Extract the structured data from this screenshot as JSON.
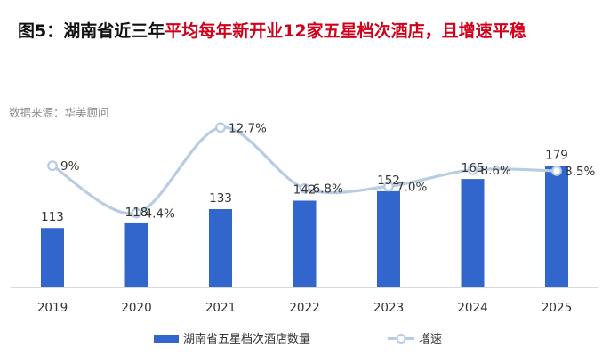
{
  "title": {
    "prefix": "图5：湖南省近三年",
    "highlight": "平均每年新开业12家五星档次酒店，且增速平稳"
  },
  "source": "数据来源：华美顾问",
  "colors": {
    "bar": "#3366cc",
    "line": "#b8cce4",
    "title_red": "#d0021b"
  },
  "chart_data": {
    "type": "bar",
    "categories": [
      "2019",
      "2020",
      "2021",
      "2022",
      "2023",
      "2024",
      "2025"
    ],
    "series": [
      {
        "name": "湖南省五星档次酒店数量",
        "type": "bar",
        "values": [
          113,
          118,
          133,
          142,
          152,
          165,
          179
        ],
        "labels": [
          "113",
          "118",
          "133",
          "142",
          "152",
          "165",
          "179"
        ]
      },
      {
        "name": "增速",
        "type": "line",
        "values": [
          9.0,
          4.4,
          12.7,
          6.8,
          7.0,
          8.6,
          8.5
        ],
        "labels": [
          "9%",
          "4.4%",
          "12.7%",
          "6.8%",
          "7.0%",
          "8.6%",
          "8.5%"
        ]
      }
    ],
    "ylim_bar": [
      0,
      200
    ],
    "ylim_line": [
      0,
      20
    ],
    "grid": false,
    "legend": "bottom"
  }
}
